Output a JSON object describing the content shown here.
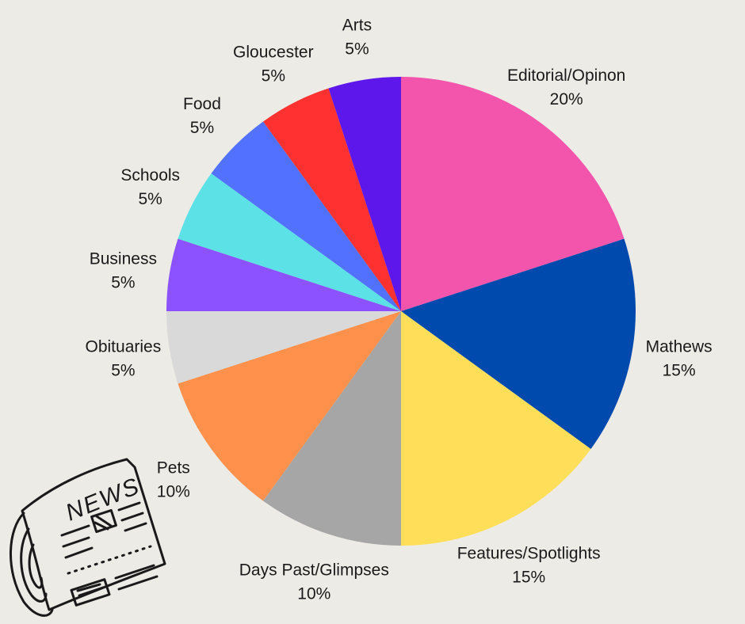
{
  "chart_data": {
    "type": "pie",
    "title": "",
    "slices": [
      {
        "label": "Editorial/Opinon",
        "value": 20,
        "value_label": "20%",
        "color": "#f455ac"
      },
      {
        "label": "Mathews",
        "value": 15,
        "value_label": "15%",
        "color": "#004aad"
      },
      {
        "label": "Features/Spotlights",
        "value": 15,
        "value_label": "15%",
        "color": "#ffde59"
      },
      {
        "label": "Days Past/Glimpses",
        "value": 10,
        "value_label": "10%",
        "color": "#a6a6a6"
      },
      {
        "label": "Pets",
        "value": 10,
        "value_label": "10%",
        "color": "#ff914d"
      },
      {
        "label": "Obituaries",
        "value": 5,
        "value_label": "5%",
        "color": "#d9d9d9"
      },
      {
        "label": "Business",
        "value": 5,
        "value_label": "5%",
        "color": "#8c52ff"
      },
      {
        "label": "Schools",
        "value": 5,
        "value_label": "5%",
        "color": "#5ce1e6"
      },
      {
        "label": "Food",
        "value": 5,
        "value_label": "5%",
        "color": "#5271ff"
      },
      {
        "label": "Gloucester",
        "value": 5,
        "value_label": "5%",
        "color": "#ff3131"
      },
      {
        "label": "Arts",
        "value": 5,
        "value_label": "5%",
        "color": "#5e17eb"
      }
    ]
  },
  "decoration": {
    "newspaper_word": "NEWS",
    "icon": "newspaper-icon"
  },
  "colors": {
    "background": "#ecebe6",
    "ink": "#1a1a1a"
  }
}
